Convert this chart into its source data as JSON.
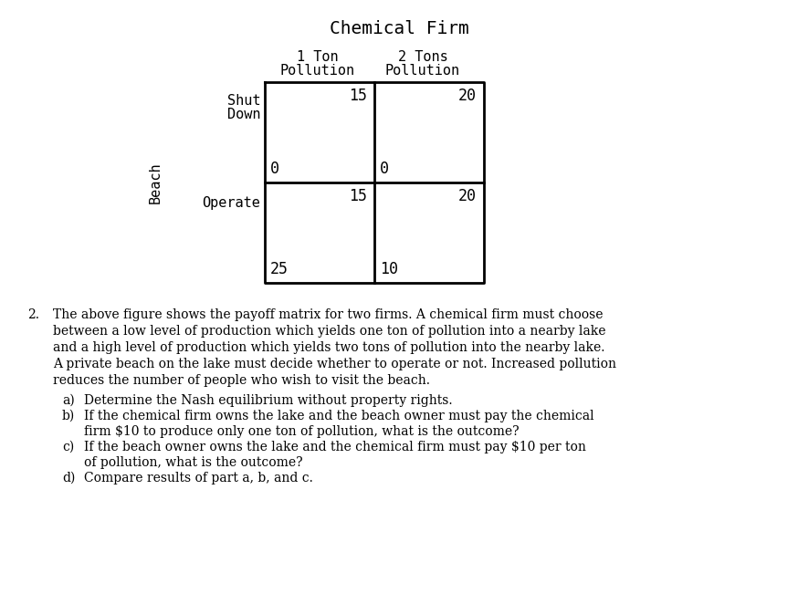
{
  "title": "Chemical Firm",
  "col_headers_line1": [
    "1 Ton",
    "2 Tons"
  ],
  "col_headers_line2": [
    "Pollution",
    "Pollution"
  ],
  "row_headers": [
    "Shut\nDown",
    "Operate"
  ],
  "row_label": "Beach",
  "payoffs": [
    [
      [
        15,
        0
      ],
      [
        20,
        0
      ]
    ],
    [
      [
        15,
        25
      ],
      [
        20,
        10
      ]
    ]
  ],
  "bg_color": "#ffffff",
  "text_color": "#000000",
  "matrix_font": "monospace",
  "body_font": "DejaVu Serif",
  "title_fontsize": 14,
  "header_fontsize": 11,
  "cell_fontsize": 12,
  "body_fontsize": 10,
  "sub_fontsize": 10,
  "question_number": "2.",
  "question_lines": [
    "The above figure shows the payoff matrix for two firms. A chemical firm must choose",
    "between a low level of production which yields one ton of pollution into a nearby lake",
    "and a high level of production which yields two tons of pollution into the nearby lake.",
    "A private beach on the lake must decide whether to operate or not. Increased pollution",
    "reduces the number of people who wish to visit the beach."
  ],
  "sub_questions": [
    [
      "a)",
      "Determine the Nash equilibrium without property rights."
    ],
    [
      "b)",
      "If the chemical firm owns the lake and the beach owner must pay the chemical"
    ],
    [
      "",
      "firm $10 to produce only one ton of pollution, what is the outcome?"
    ],
    [
      "c)",
      "If the beach owner owns the lake and the chemical firm must pay $10 per ton"
    ],
    [
      "",
      "of pollution, what is the outcome?"
    ],
    [
      "d)",
      "Compare results of part a, b, and c."
    ]
  ]
}
